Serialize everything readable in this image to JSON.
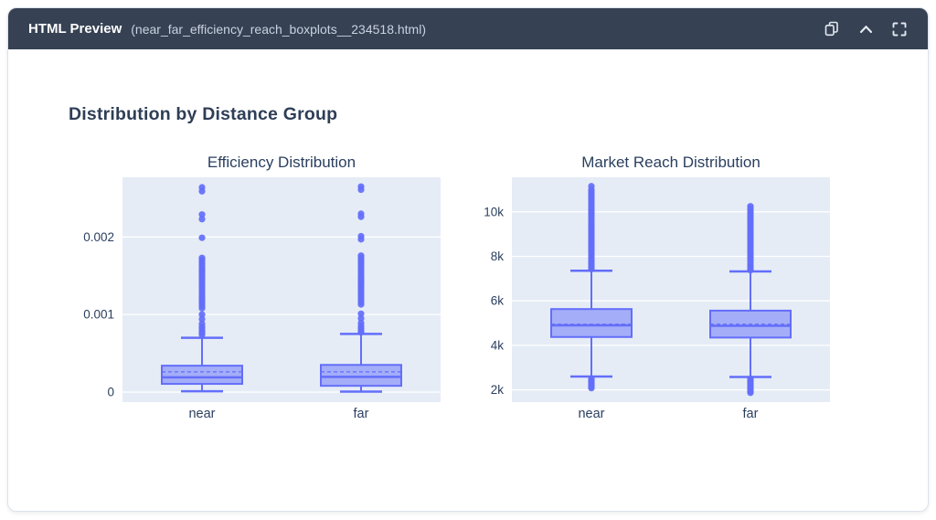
{
  "header": {
    "title": "HTML Preview",
    "filename": "(near_far_efficiency_reach_boxplots__234518.html)",
    "icons": [
      "copy-icon",
      "chevron-up-icon",
      "fullscreen-icon"
    ]
  },
  "page": {
    "heading": "Distribution by Distance Group"
  },
  "colors": {
    "header_bg": "#364153",
    "header_text": "#ffffff",
    "header_file_text": "#c9d2e0",
    "accent_line": "#636efa",
    "box_fill": "#636efa",
    "plot_bg": "#e5ecf6",
    "grid": "#ffffff",
    "chart_text": "#2a3f5f"
  },
  "chart_data": [
    {
      "type": "box",
      "title": "Efficiency Distribution",
      "categories": [
        "near",
        "far"
      ],
      "ylim": [
        -0.00013,
        0.00277
      ],
      "yticks": [
        {
          "value": 0,
          "label": "0"
        },
        {
          "value": 0.001,
          "label": "0.001"
        },
        {
          "value": 0.002,
          "label": "0.002"
        }
      ],
      "series": [
        {
          "name": "near",
          "q1": 0.000105,
          "median": 0.00019,
          "q3": 0.00034,
          "mean": 0.00026,
          "whisker_low": 1e-05,
          "whisker_high": 0.0007,
          "outliers": [
            0.00264,
            0.00259,
            0.00229,
            0.00223,
            0.00199,
            0.00173,
            0.0017,
            0.00167,
            0.00164,
            0.00161,
            0.00158,
            0.00156,
            0.00153,
            0.0015,
            0.00147,
            0.00144,
            0.00141,
            0.00138,
            0.00135,
            0.00132,
            0.00129,
            0.00126,
            0.00123,
            0.0012,
            0.00117,
            0.00114,
            0.00111,
            0.00108,
            0.001,
            0.00094,
            0.00088,
            0.00084,
            0.00081,
            0.00078,
            0.00076,
            0.00074
          ]
        },
        {
          "name": "far",
          "q1": 8e-05,
          "median": 0.000195,
          "q3": 0.00035,
          "mean": 0.00026,
          "whisker_low": 5e-06,
          "whisker_high": 0.00075,
          "outliers": [
            0.00265,
            0.00261,
            0.0023,
            0.00226,
            0.00201,
            0.00197,
            0.00176,
            0.00173,
            0.0017,
            0.00167,
            0.00164,
            0.00161,
            0.00158,
            0.00155,
            0.00152,
            0.00149,
            0.00146,
            0.00143,
            0.0014,
            0.00137,
            0.00134,
            0.00131,
            0.00128,
            0.00125,
            0.00122,
            0.00119,
            0.00116,
            0.00113,
            0.00101,
            0.00095,
            0.00089,
            0.00085,
            0.00082,
            0.00079,
            0.00077
          ]
        }
      ]
    },
    {
      "type": "box",
      "title": "Market Reach Distribution",
      "categories": [
        "near",
        "far"
      ],
      "ylim": [
        1450,
        11550
      ],
      "yticks": [
        {
          "value": 2000,
          "label": "2k"
        },
        {
          "value": 4000,
          "label": "4k"
        },
        {
          "value": 6000,
          "label": "6k"
        },
        {
          "value": 8000,
          "label": "8k"
        },
        {
          "value": 10000,
          "label": "10k"
        }
      ],
      "series": [
        {
          "name": "near",
          "q1": 4375,
          "median": 4900,
          "q3": 5630,
          "mean": 4950,
          "whisker_low": 2600,
          "whisker_high": 7350,
          "outliers": [
            11150,
            11000,
            10900,
            10800,
            10700,
            10600,
            10500,
            10400,
            10300,
            10200,
            10100,
            10000,
            9900,
            9800,
            9700,
            9600,
            9500,
            9400,
            9300,
            9200,
            9100,
            9000,
            8900,
            8800,
            8700,
            8600,
            8500,
            8400,
            8300,
            8200,
            8100,
            8000,
            7900,
            7800,
            7700,
            7600,
            7500,
            7420,
            2500,
            2440,
            2380,
            2320,
            2260,
            2200,
            2140,
            2080
          ]
        },
        {
          "name": "far",
          "q1": 4350,
          "median": 4880,
          "q3": 5560,
          "mean": 4950,
          "whisker_low": 2580,
          "whisker_high": 7320,
          "outliers": [
            10250,
            10150,
            10050,
            9950,
            9850,
            9750,
            9650,
            9550,
            9450,
            9350,
            9250,
            9150,
            9050,
            8950,
            8850,
            8750,
            8650,
            8550,
            8450,
            8350,
            8250,
            8150,
            8050,
            7950,
            7850,
            7750,
            7650,
            7550,
            7450,
            7380,
            2500,
            2430,
            2360,
            2290,
            2220,
            2150,
            2080,
            2010,
            1940,
            1870
          ]
        }
      ]
    }
  ]
}
